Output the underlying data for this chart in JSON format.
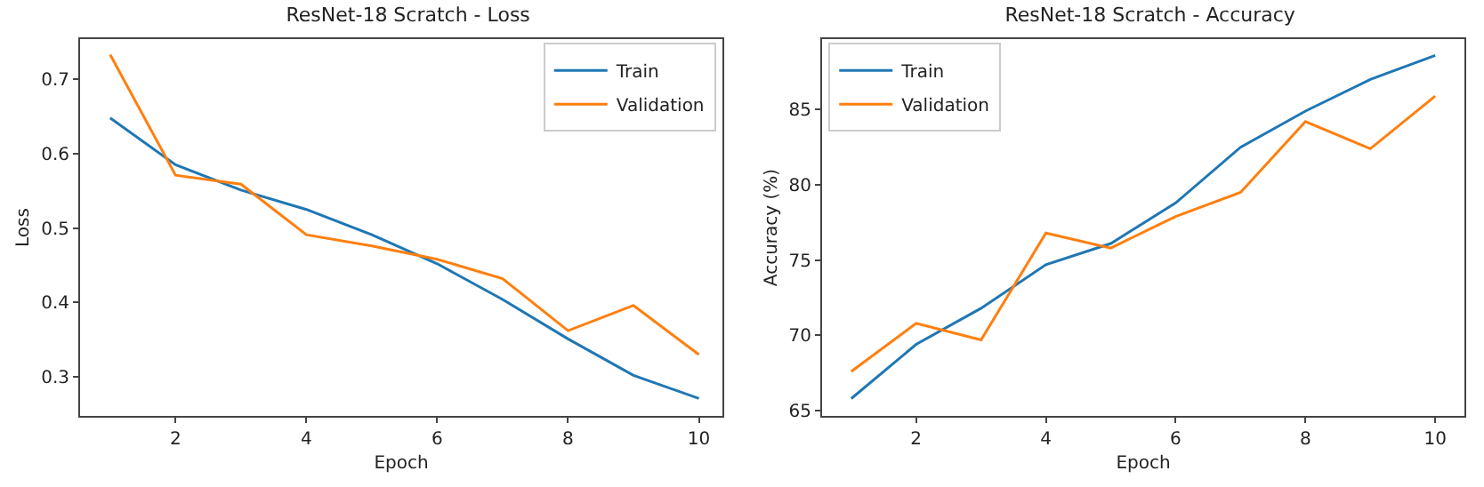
{
  "chart_data": [
    {
      "type": "line",
      "title": "ResNet-18 Scratch - Loss",
      "xlabel": "Epoch",
      "ylabel": "Loss",
      "x": [
        1,
        2,
        3,
        4,
        5,
        6,
        7,
        8,
        9,
        10
      ],
      "xlim": [
        0.54,
        10.36
      ],
      "xticks": [
        2,
        4,
        6,
        8,
        10
      ],
      "ylim": [
        0.2475,
        0.754
      ],
      "yticks": [
        0.3,
        0.4,
        0.5,
        0.6,
        0.7
      ],
      "grid": false,
      "legend": "top right",
      "series": [
        {
          "name": "Train",
          "color": "#1f77b4",
          "values": [
            0.648,
            0.585,
            0.551,
            0.525,
            0.491,
            0.452,
            0.404,
            0.351,
            0.302,
            0.271
          ]
        },
        {
          "name": "Validation",
          "color": "#ff7f0e",
          "values": [
            0.733,
            0.571,
            0.559,
            0.491,
            0.476,
            0.458,
            0.432,
            0.362,
            0.396,
            0.33
          ]
        }
      ]
    },
    {
      "type": "line",
      "title": "ResNet-18 Scratch - Accuracy",
      "xlabel": "Epoch",
      "ylabel": "Accuracy (%)",
      "x": [
        1,
        2,
        3,
        4,
        5,
        6,
        7,
        8,
        9,
        10
      ],
      "xlim": [
        0.55,
        10.45
      ],
      "xticks": [
        2,
        4,
        6,
        8,
        10
      ],
      "ylim": [
        64.65,
        89.68
      ],
      "yticks": [
        65,
        70,
        75,
        80,
        85
      ],
      "grid": false,
      "legend": "top left",
      "series": [
        {
          "name": "Train",
          "color": "#1f77b4",
          "values": [
            65.8,
            69.4,
            71.8,
            74.7,
            76.1,
            78.8,
            82.5,
            84.9,
            87.0,
            88.6
          ]
        },
        {
          "name": "Validation",
          "color": "#ff7f0e",
          "values": [
            67.6,
            70.8,
            69.7,
            76.8,
            75.8,
            77.9,
            79.5,
            84.2,
            82.4,
            85.9
          ]
        }
      ]
    }
  ]
}
